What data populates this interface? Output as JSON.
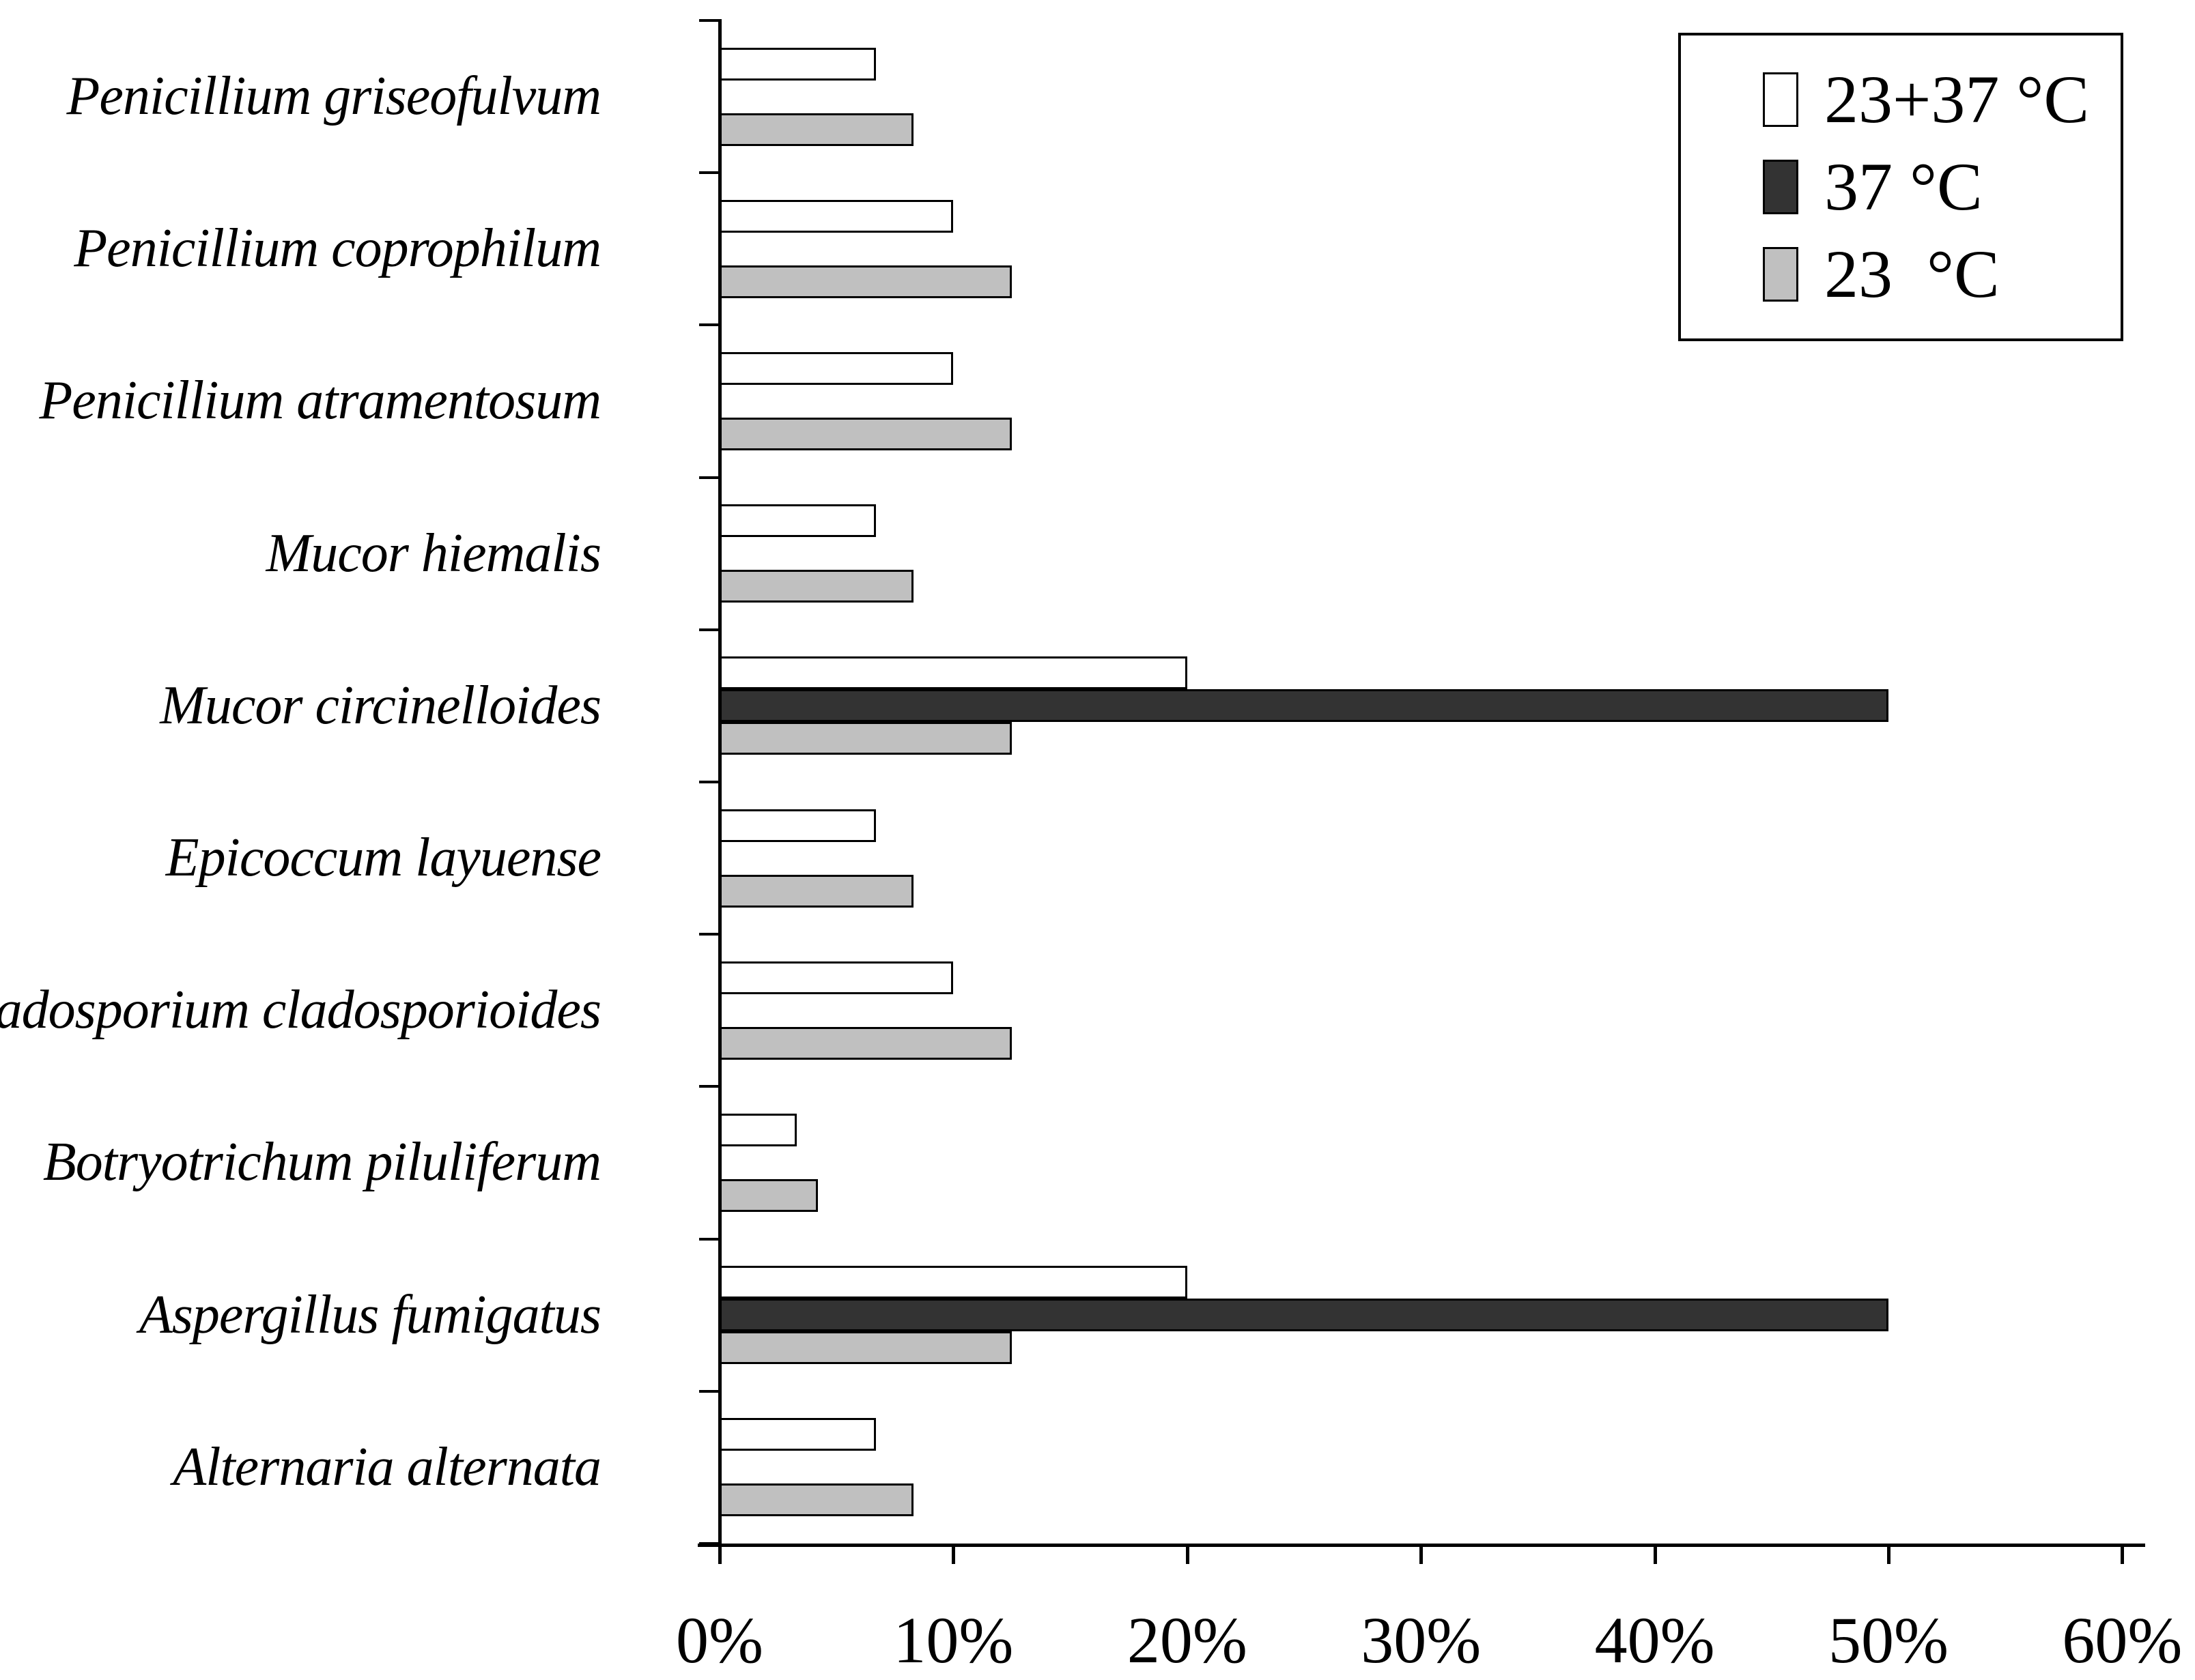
{
  "chart_data": {
    "type": "bar",
    "orientation": "horizontal",
    "title": "",
    "xlabel": "",
    "ylabel": "",
    "xlim": [
      0,
      60
    ],
    "grid": false,
    "legend_position": "top-right",
    "categories": [
      "Penicillium griseofulvum",
      "Penicillium coprophilum",
      "Penicillium atramentosum",
      "Mucor hiemalis",
      "Mucor circinelloides",
      "Epicoccum layuense",
      "Cladosporium cladosporioides",
      "Botryotrichum piluliferum",
      "Aspergillus fumigatus",
      "Alternaria alternata"
    ],
    "series": [
      {
        "name": "23+37 °C",
        "color": "#ffffff",
        "values": [
          6.7,
          10,
          10,
          6.7,
          20,
          6.7,
          10,
          3.3,
          20,
          6.7
        ]
      },
      {
        "name": "37 °C",
        "color": "#333333",
        "values": [
          0,
          0,
          0,
          0,
          50,
          0,
          0,
          0,
          50,
          0
        ]
      },
      {
        "name": "23 °C",
        "color": "#c0c0c0",
        "values": [
          8.3,
          12.5,
          12.5,
          8.3,
          12.5,
          8.3,
          12.5,
          4.2,
          12.5,
          8.3
        ]
      }
    ],
    "x_ticks": {
      "values": [
        0,
        10,
        20,
        30,
        40,
        50,
        60
      ],
      "labels": [
        "0%",
        "10%",
        "20%",
        "30%",
        "40%",
        "50%",
        "60%"
      ]
    }
  },
  "legend": {
    "items": [
      {
        "label": "23+37 °C",
        "color": "#ffffff"
      },
      {
        "label": "37 °C",
        "color": "#333333"
      },
      {
        "label": "23  °C",
        "color": "#c0c0c0"
      }
    ]
  },
  "colors": {
    "background": "#ffffff",
    "axis": "#000000",
    "bar_border": "#000000"
  }
}
